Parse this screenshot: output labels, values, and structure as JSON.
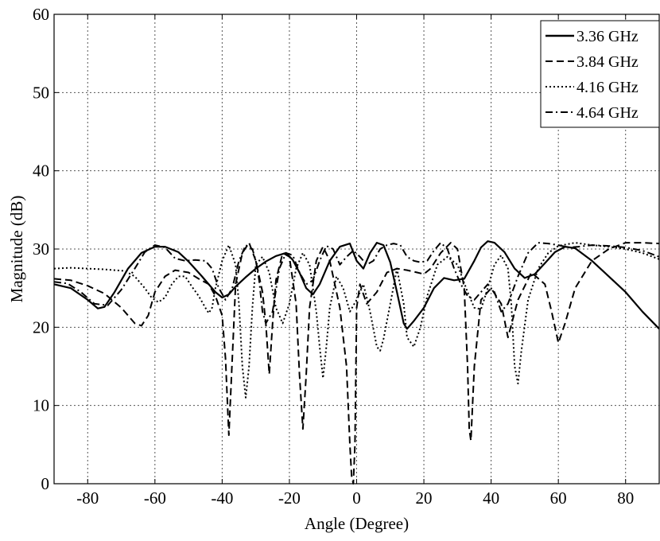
{
  "chart_data": {
    "type": "line",
    "title": "",
    "xlabel": "Angle (Degree)",
    "ylabel": "Magnitude (dB)",
    "xlim": [
      -90,
      90
    ],
    "ylim": [
      0,
      60
    ],
    "xticks": [
      -80,
      -60,
      -40,
      -20,
      0,
      20,
      40,
      60,
      80
    ],
    "yticks": [
      0,
      10,
      20,
      30,
      40,
      50,
      60
    ],
    "grid": true,
    "legend_position": "top-right",
    "series": [
      {
        "name": "3.36 GHz",
        "style": "solid",
        "x": [
          -90,
          -85,
          -80,
          -77,
          -75,
          -72,
          -68,
          -64,
          -60,
          -57,
          -53,
          -50,
          -46,
          -42,
          -40,
          -38,
          -36,
          -33,
          -30,
          -27,
          -24,
          -21,
          -19,
          -17,
          -15,
          -13,
          -11,
          -8,
          -5,
          -2,
          0,
          2,
          4,
          6,
          8,
          10,
          12,
          14,
          15,
          17,
          20,
          23,
          26,
          29,
          32,
          35,
          37,
          39,
          41,
          44,
          47,
          50,
          53,
          56,
          59,
          62,
          65,
          70,
          75,
          80,
          85,
          90
        ],
        "y": [
          25.5,
          25,
          23.5,
          22.4,
          22.6,
          24.5,
          27.5,
          29.5,
          30.3,
          30.3,
          29.6,
          28.4,
          26.5,
          24.5,
          23.8,
          24.2,
          25.2,
          26.4,
          27.5,
          28.4,
          29.1,
          29.5,
          28.6,
          27,
          25,
          24.2,
          25.5,
          28.5,
          30.3,
          30.7,
          28.5,
          27.5,
          29.5,
          30.8,
          30.5,
          28.3,
          24.5,
          20.5,
          19.8,
          20.8,
          22.5,
          25,
          26.3,
          26,
          26.2,
          28.5,
          30.2,
          31,
          30.8,
          29.6,
          27.5,
          26.3,
          26.8,
          28.2,
          29.6,
          30.3,
          30.1,
          28.5,
          26.5,
          24.5,
          22,
          19.8
        ]
      },
      {
        "name": "3.84 GHz",
        "style": "dashed",
        "x": [
          -90,
          -85,
          -80,
          -75,
          -70,
          -66,
          -64,
          -62,
          -60,
          -57,
          -54,
          -50,
          -47,
          -44,
          -42,
          -40,
          -39,
          -38,
          -37,
          -36,
          -34,
          -32,
          -30,
          -28,
          -27,
          -26,
          -25,
          -24,
          -22,
          -20,
          -18,
          -17,
          -16,
          -15,
          -14,
          -12,
          -10,
          -8,
          -5,
          -3,
          -2,
          -1.5,
          -1,
          -0.5,
          0,
          1,
          3,
          6,
          9,
          12,
          15,
          18,
          20,
          22,
          25,
          28,
          30,
          32,
          33,
          33.5,
          34,
          35,
          37,
          40,
          43,
          45,
          48,
          52,
          56,
          58,
          60,
          62,
          65,
          70,
          75,
          80,
          85,
          90
        ],
        "y": [
          26.2,
          26,
          25.3,
          24.3,
          22.5,
          20.5,
          20.2,
          21.5,
          24.5,
          26.5,
          27.3,
          27,
          26.2,
          25.5,
          24,
          21.5,
          16,
          6.2,
          16,
          25.5,
          29.5,
          30.8,
          28.5,
          24.5,
          20.5,
          14,
          20.5,
          26,
          29.5,
          29,
          23,
          14,
          7,
          14,
          22.5,
          28.5,
          30.3,
          28.5,
          22.5,
          15,
          5,
          1,
          0,
          5,
          22.5,
          25.5,
          23,
          24.5,
          27,
          27.5,
          27.3,
          27,
          26.8,
          27.5,
          29.5,
          30.8,
          30,
          25,
          15,
          7,
          5.5,
          15,
          23.5,
          25,
          23,
          18.7,
          23.5,
          27,
          25.5,
          22,
          18,
          20.5,
          25,
          28.5,
          30,
          30.8,
          30.8,
          30.7
        ]
      },
      {
        "name": "4.16 GHz",
        "style": "dotted",
        "x": [
          -90,
          -85,
          -80,
          -75,
          -72,
          -69,
          -66,
          -63,
          -61,
          -59,
          -57,
          -55,
          -53,
          -51,
          -49,
          -47,
          -45,
          -44,
          -43,
          -42,
          -40,
          -38,
          -36,
          -35,
          -34,
          -33,
          -32,
          -31,
          -30,
          -28,
          -26,
          -24,
          -22,
          -20,
          -18,
          -16,
          -14,
          -12,
          -11,
          -10,
          -9,
          -8,
          -6,
          -4,
          -2,
          0,
          2,
          4,
          6,
          7,
          8,
          10,
          12,
          14,
          15,
          17,
          19,
          21,
          24,
          27,
          30,
          33,
          35,
          37,
          39,
          41,
          43,
          45,
          46,
          47,
          48,
          49,
          51,
          54,
          57,
          60,
          65,
          70,
          75,
          80,
          85,
          90
        ],
        "y": [
          27.5,
          27.6,
          27.5,
          27.4,
          27.3,
          27.2,
          26.5,
          25,
          23.8,
          23.2,
          23.8,
          25.5,
          26.5,
          26.5,
          25.2,
          24,
          22.5,
          21.8,
          22.5,
          25,
          28.5,
          30.5,
          28,
          23,
          15,
          11,
          15,
          22.5,
          28,
          29,
          27,
          22.5,
          20.5,
          23,
          27.5,
          29.5,
          28,
          22,
          17.5,
          13.5,
          17.5,
          22.5,
          26.5,
          25,
          22,
          23.5,
          25.5,
          22,
          17.5,
          17,
          18.5,
          23,
          27.5,
          23,
          18.7,
          17.5,
          20,
          24,
          28,
          29,
          28,
          24.5,
          22.5,
          22.3,
          25,
          28,
          29.2,
          27.5,
          23,
          15,
          12.8,
          17,
          23.5,
          27.5,
          29.5,
          30.4,
          30.8,
          30.5,
          30.3,
          30,
          29.5,
          28.7
        ]
      },
      {
        "name": "4.64 GHz",
        "style": "dashdot",
        "x": [
          -90,
          -86,
          -82,
          -78,
          -74,
          -70,
          -66,
          -63,
          -60,
          -57,
          -54,
          -51,
          -48,
          -45,
          -43,
          -41,
          -39,
          -37,
          -35,
          -33,
          -31,
          -30,
          -29,
          -28,
          -27,
          -25,
          -23,
          -21,
          -19,
          -17,
          -15,
          -13,
          -11,
          -9,
          -7,
          -5,
          -3,
          -1,
          1,
          3,
          5,
          7,
          9,
          11,
          13,
          15,
          17,
          19,
          21,
          23,
          25,
          27,
          29,
          31,
          33,
          35,
          37,
          39,
          41,
          43,
          45,
          48,
          51,
          54,
          57,
          60,
          63,
          66,
          70,
          75,
          80,
          85,
          90
        ],
        "y": [
          25.8,
          25.6,
          24.5,
          23,
          22.8,
          24.8,
          27.5,
          29.6,
          30.5,
          30.2,
          28.8,
          28.5,
          28.6,
          28.5,
          27.5,
          25,
          23.5,
          25,
          28.5,
          30.5,
          30,
          28.5,
          26,
          22,
          20.5,
          22,
          27.5,
          29.5,
          29.2,
          27,
          25.5,
          26,
          28.5,
          30.4,
          30,
          28,
          29,
          29.8,
          29,
          28,
          28.5,
          30,
          30.5,
          30.7,
          30.5,
          29,
          28.5,
          28.3,
          28.5,
          29.8,
          30.8,
          30,
          27.5,
          25.5,
          24,
          23.5,
          24.5,
          25.5,
          24.5,
          22,
          23,
          26.5,
          29.5,
          30.8,
          30.7,
          30.5,
          30.2,
          30.3,
          30.5,
          30.4,
          30.2,
          29.8,
          29
        ]
      }
    ]
  }
}
